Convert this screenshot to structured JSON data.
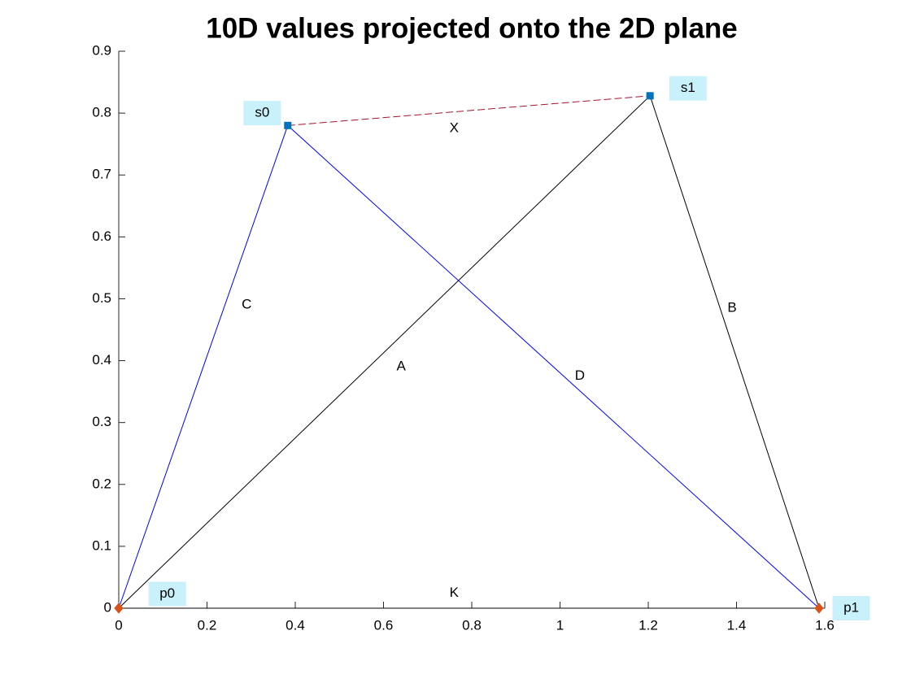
{
  "chart_data": {
    "type": "network",
    "title": "10D values projected onto the 2D plane",
    "xlim": [
      0,
      1.6
    ],
    "ylim": [
      0,
      0.9
    ],
    "xticks": [
      0,
      0.2,
      0.4,
      0.6,
      0.8,
      1,
      1.2,
      1.4,
      1.6
    ],
    "yticks": [
      0,
      0.1,
      0.2,
      0.3,
      0.4,
      0.5,
      0.6,
      0.7,
      0.8,
      0.9
    ],
    "points": [
      {
        "name": "p0",
        "x": 0,
        "y": 0,
        "color": "#d95319",
        "marker": "diamond",
        "label_x": 0.11,
        "label_y": 0.023
      },
      {
        "name": "p1",
        "x": 1.587,
        "y": 0,
        "color": "#d95319",
        "marker": "diamond",
        "label_x": 1.66,
        "label_y": 0
      },
      {
        "name": "s0",
        "x": 0.383,
        "y": 0.78,
        "color": "#0072bd",
        "marker": "square",
        "label_x": 0.325,
        "label_y": 0.8
      },
      {
        "name": "s1",
        "x": 1.204,
        "y": 0.828,
        "color": "#0072bd",
        "marker": "square",
        "label_x": 1.29,
        "label_y": 0.84
      }
    ],
    "segments": [
      {
        "name": "K",
        "from": "p0",
        "to": "p1",
        "color": "#000000",
        "dashed": false,
        "label_x": 0.76,
        "label_y": 0.024
      },
      {
        "name": "C",
        "from": "p0",
        "to": "s0",
        "color": "#0000ff",
        "dashed": false,
        "label_x": 0.29,
        "label_y": 0.49
      },
      {
        "name": "A",
        "from": "p0",
        "to": "s1",
        "color": "#000000",
        "dashed": false,
        "label_x": 0.64,
        "label_y": 0.39
      },
      {
        "name": "D",
        "from": "s0",
        "to": "p1",
        "color": "#0000ff",
        "dashed": false,
        "label_x": 1.045,
        "label_y": 0.375
      },
      {
        "name": "B",
        "from": "s1",
        "to": "p1",
        "color": "#000000",
        "dashed": false,
        "label_x": 1.39,
        "label_y": 0.485
      },
      {
        "name": "X",
        "from": "s0",
        "to": "s1",
        "color": "#a2142f",
        "dashed": true,
        "label_x": 0.76,
        "label_y": 0.775
      }
    ]
  }
}
